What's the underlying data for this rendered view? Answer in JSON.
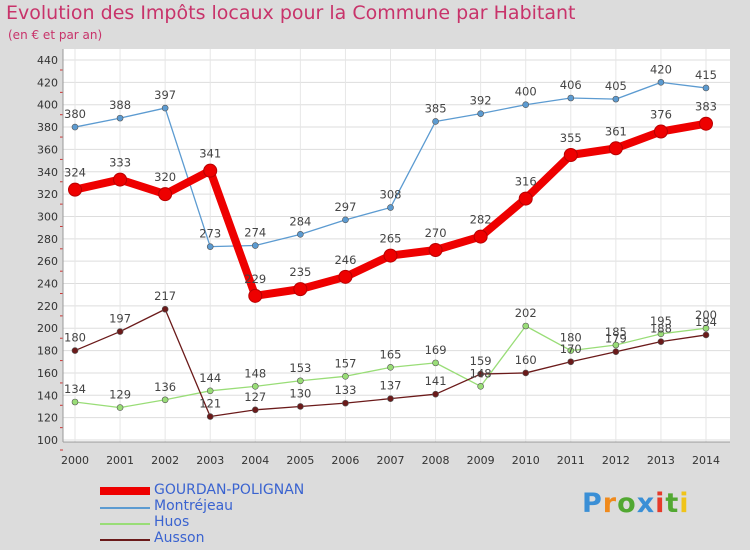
{
  "title": "Evolution des Impôts locaux pour la Commune par Habitant",
  "subtitle": "(en € et par an)",
  "logo": {
    "text": "Proxiti",
    "colors": [
      "#3a8fd6",
      "#f08a1c",
      "#52a832",
      "#3a8fd6",
      "#e63a2a",
      "#52a832",
      "#f0c419"
    ]
  },
  "chart_data": {
    "type": "line",
    "title": "Evolution des Impôts locaux pour la Commune par Habitant",
    "subtitle": "(en € et par an)",
    "x": [
      "2000",
      "2001",
      "2002",
      "2003",
      "2004",
      "2005",
      "2006",
      "2007",
      "2008",
      "2009",
      "2010",
      "2011",
      "2012",
      "2013",
      "2014"
    ],
    "yticks": [
      100,
      120,
      140,
      160,
      180,
      200,
      220,
      240,
      260,
      280,
      300,
      320,
      340,
      360,
      380,
      400,
      420,
      440
    ],
    "ylim": [
      100,
      440
    ],
    "grid": true,
    "legend_position": "bottom-left",
    "series": [
      {
        "name": "GOURDAN-POLIGNAN",
        "color": "#ee0000",
        "values": [
          324,
          333,
          320,
          341,
          229,
          235,
          246,
          265,
          270,
          282,
          316,
          355,
          361,
          376,
          383
        ],
        "labels": [
          "324",
          "333",
          "320",
          "341",
          "229",
          "235",
          "246",
          "265",
          "270",
          "282",
          "316",
          "355",
          "361",
          "376",
          "383"
        ]
      },
      {
        "name": "Montréjeau",
        "color": "#5c9bd1",
        "values": [
          380,
          388,
          397,
          273,
          274,
          284,
          297,
          308,
          385,
          392,
          400,
          406,
          405,
          420,
          415
        ],
        "labels": [
          "380",
          "388",
          "397",
          "273",
          "274",
          "284",
          "297",
          "308",
          "385",
          "392",
          "400",
          "406",
          "405",
          "420",
          "415"
        ]
      },
      {
        "name": "Huos",
        "color": "#99dd77",
        "values": [
          134,
          129,
          136,
          144,
          148,
          153,
          157,
          165,
          169,
          148,
          202,
          180,
          185,
          195,
          200
        ],
        "labels": [
          "134",
          "129",
          "136",
          "144",
          "148",
          "153",
          "157",
          "165",
          "169",
          "148",
          "202",
          "180",
          "185",
          "195",
          "200"
        ]
      },
      {
        "name": "Ausson",
        "color": "#6b1a1a",
        "values": [
          180,
          197,
          217,
          121,
          127,
          130,
          133,
          137,
          141,
          159,
          160,
          170,
          179,
          188,
          194
        ],
        "labels": [
          "180",
          "197",
          "217",
          "121",
          "127",
          "130",
          "133",
          "137",
          "141",
          "159",
          "160",
          "170",
          "179",
          "188",
          "194"
        ]
      }
    ]
  }
}
